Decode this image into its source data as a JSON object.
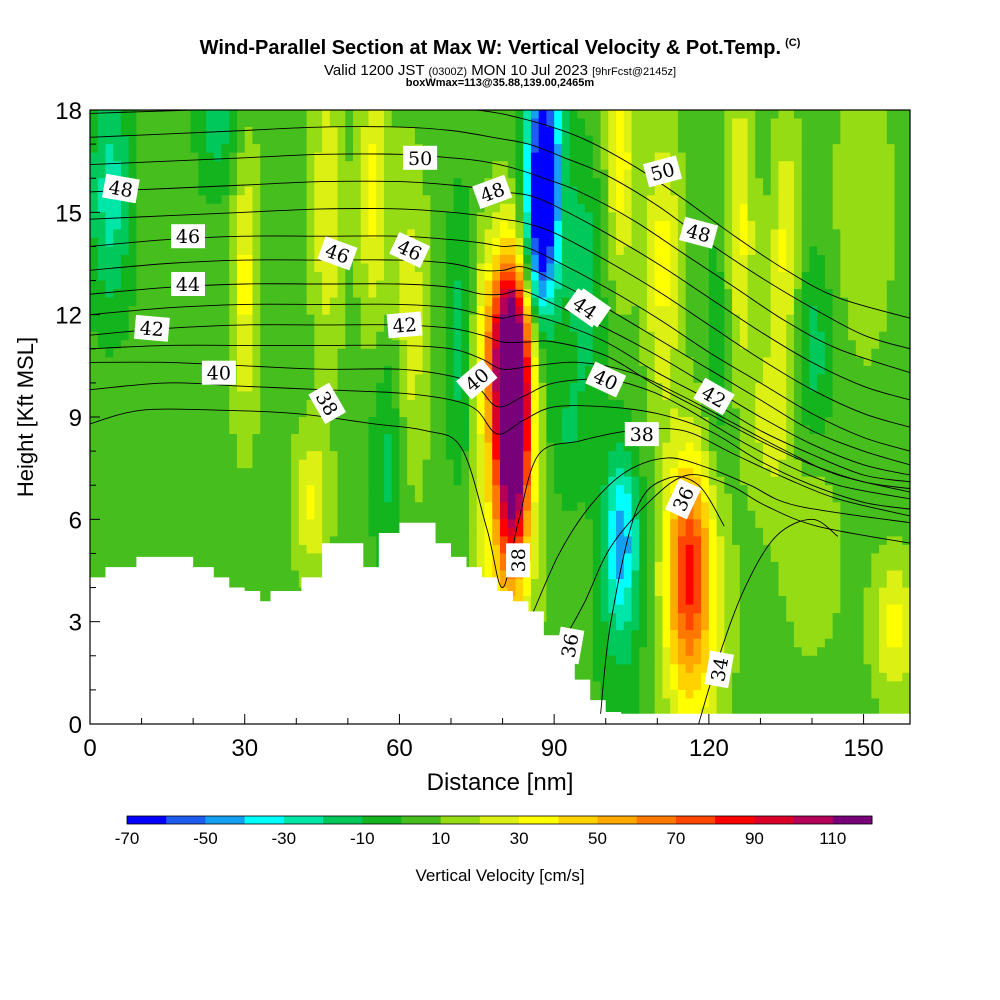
{
  "chart_data": {
    "type": "heatmap",
    "title": "Wind-Parallel Section at Max W: Vertical Velocity & Pot.Temp.",
    "copyright": "(C)",
    "valid": {
      "prefix": "Valid 1200 JST",
      "utc": "(0300Z)",
      "date": "MON 10 Jul 2023",
      "forecast": "[9hrFcst@2145z]"
    },
    "boxinfo": "boxWmax=113@35.88,139.00,2465m",
    "xlabel": "Distance [nm]",
    "ylabel": "Height [Kft MSL]",
    "xlim": [
      0,
      159
    ],
    "ylim": [
      0,
      18
    ],
    "x_ticks": [
      0,
      30,
      60,
      90,
      120,
      150
    ],
    "y_ticks": [
      0,
      3,
      6,
      9,
      12,
      15,
      18
    ],
    "colorbar": {
      "label": "Vertical Velocity [cm/s]",
      "tick_labels": [
        -70,
        -50,
        -30,
        -10,
        10,
        30,
        50,
        70,
        90,
        110
      ],
      "bounds": [
        -70,
        -60,
        -50,
        -40,
        -30,
        -20,
        -10,
        0,
        10,
        20,
        30,
        40,
        50,
        60,
        70,
        80,
        90,
        100,
        110,
        120
      ],
      "colors": [
        "#0000ff",
        "#1e5cf0",
        "#14a0f0",
        "#00ffff",
        "#00e6a8",
        "#00c85a",
        "#14b41e",
        "#46be1e",
        "#96dc14",
        "#dcf014",
        "#ffff00",
        "#ffd200",
        "#ffa800",
        "#ff7800",
        "#ff4600",
        "#ff0000",
        "#dc0028",
        "#b4005a",
        "#780078"
      ]
    },
    "background_value": 5,
    "velocity_features": [
      {
        "x": 82,
        "y": 8.8,
        "sx": 2.2,
        "sy": 2.8,
        "v": 120
      },
      {
        "x": 81,
        "y": 11.2,
        "sx": 3.8,
        "sy": 1.8,
        "v": 52
      },
      {
        "x": 80,
        "y": 7.2,
        "sx": 4.5,
        "sy": 4.5,
        "v": 32
      },
      {
        "x": 88,
        "y": 16.3,
        "sx": 2.6,
        "sy": 2.6,
        "v": -78
      },
      {
        "x": 87,
        "y": 13.5,
        "sx": 2.2,
        "sy": 1.8,
        "v": -36
      },
      {
        "x": 116,
        "y": 4.6,
        "sx": 3.0,
        "sy": 2.2,
        "v": 55
      },
      {
        "x": 117,
        "y": 3.0,
        "sx": 4.5,
        "sy": 3.5,
        "v": 28
      },
      {
        "x": 103,
        "y": 5.5,
        "sx": 2.2,
        "sy": 1.6,
        "v": -36
      },
      {
        "x": 103,
        "y": 4.0,
        "sx": 3.5,
        "sy": 3.0,
        "v": -18
      },
      {
        "x": 4,
        "y": 15.5,
        "sx": 3.0,
        "sy": 2.5,
        "v": -30
      },
      {
        "x": 25,
        "y": 17.5,
        "sx": 3.0,
        "sy": 1.5,
        "v": -20
      },
      {
        "x": 30,
        "y": 13.0,
        "sx": 2.0,
        "sy": 3.0,
        "v": 28
      },
      {
        "x": 46,
        "y": 15.0,
        "sx": 2.2,
        "sy": 3.0,
        "v": 25
      },
      {
        "x": 55,
        "y": 15.5,
        "sx": 2.0,
        "sy": 3.0,
        "v": 28
      },
      {
        "x": 62,
        "y": 11.5,
        "sx": 2.5,
        "sy": 3.5,
        "v": 22
      },
      {
        "x": 58,
        "y": 8.0,
        "sx": 2.5,
        "sy": 2.5,
        "v": -20
      },
      {
        "x": 72,
        "y": 11.0,
        "sx": 2.0,
        "sy": 3.0,
        "v": -25
      },
      {
        "x": 103,
        "y": 16.5,
        "sx": 2.0,
        "sy": 2.5,
        "v": 30
      },
      {
        "x": 111,
        "y": 13.5,
        "sx": 2.5,
        "sy": 3.0,
        "v": 28
      },
      {
        "x": 126,
        "y": 14.5,
        "sx": 2.0,
        "sy": 3.0,
        "v": 28
      },
      {
        "x": 135,
        "y": 14.0,
        "sx": 2.0,
        "sy": 2.5,
        "v": 28
      },
      {
        "x": 96,
        "y": 13.0,
        "sx": 2.5,
        "sy": 2.5,
        "v": -22
      },
      {
        "x": 140,
        "y": 11.0,
        "sx": 3.0,
        "sy": 2.0,
        "v": -20
      },
      {
        "x": 122,
        "y": 11.0,
        "sx": 2.0,
        "sy": 2.5,
        "v": -15
      },
      {
        "x": 150,
        "y": 15.0,
        "sx": 4.0,
        "sy": 3.0,
        "v": 15
      },
      {
        "x": 156,
        "y": 2.8,
        "sx": 3.0,
        "sy": 1.5,
        "v": 28
      },
      {
        "x": 43,
        "y": 6.5,
        "sx": 2.5,
        "sy": 1.5,
        "v": 26
      },
      {
        "x": 140,
        "y": 5.0,
        "sx": 4.0,
        "sy": 2.0,
        "v": 15
      },
      {
        "x": 92,
        "y": 8.5,
        "sx": 3.0,
        "sy": 1.5,
        "v": -15
      },
      {
        "x": 132,
        "y": 9.0,
        "sx": 3.0,
        "sy": 2.0,
        "v": 20
      }
    ],
    "terrain": {
      "x": [
        0,
        3,
        9,
        15,
        20,
        24,
        27,
        30,
        33,
        35,
        38,
        41,
        45,
        50,
        53,
        56,
        60,
        63,
        67,
        70,
        73,
        76,
        79,
        82,
        85,
        88,
        91,
        94,
        97,
        100,
        103,
        106,
        159
      ],
      "height": [
        4.3,
        4.6,
        4.9,
        4.9,
        4.6,
        4.3,
        4.0,
        3.9,
        3.6,
        3.9,
        3.9,
        4.3,
        5.3,
        5.3,
        4.6,
        5.6,
        5.9,
        5.9,
        5.3,
        4.9,
        4.6,
        4.3,
        3.9,
        3.6,
        3.3,
        2.6,
        2.0,
        1.3,
        0.7,
        0.35,
        0.3,
        0.3,
        0.3
      ]
    },
    "contours": [
      {
        "level": 34,
        "x": [
          118,
          122,
          127,
          133,
          140,
          145
        ],
        "y": [
          0,
          2.0,
          4.0,
          5.5,
          6.0,
          5.5
        ],
        "label": "34",
        "label_pos": [
          122,
          1.6
        ],
        "label_rot": -80
      },
      {
        "level": 35,
        "x": [
          99,
          101,
          106,
          112,
          118,
          123
        ],
        "y": [
          0.3,
          3.0,
          6.3,
          7.2,
          7.0,
          5.8
        ]
      },
      {
        "level": 36,
        "x": [
          92,
          96,
          101,
          109,
          116,
          124,
          131,
          141,
          159
        ],
        "y": [
          2.5,
          3.6,
          5.2,
          6.6,
          7.3,
          7.0,
          6.4,
          5.8,
          5.3
        ],
        "label": "36",
        "label_pos": [
          115,
          6.6
        ],
        "label_rot": -65
      },
      {
        "level": 37,
        "x": [
          86,
          91,
          97,
          104,
          112,
          120,
          128,
          137,
          159
        ],
        "y": [
          3.3,
          5.0,
          6.4,
          7.4,
          7.8,
          7.5,
          7.0,
          6.4,
          5.9
        ]
      },
      {
        "level": 38,
        "x": [
          0,
          10,
          25,
          40,
          55,
          65,
          72,
          77,
          80,
          83,
          87,
          95,
          105,
          115,
          125,
          135,
          145,
          159
        ],
        "y": [
          8.8,
          9.2,
          9.2,
          9.1,
          8.8,
          8.6,
          8.1,
          5.7,
          4.0,
          5.9,
          7.9,
          8.3,
          8.6,
          8.6,
          7.9,
          7.2,
          6.6,
          6.1
        ],
        "label": "38",
        "label_pos": [
          107,
          8.5
        ],
        "label_rot": 0
      },
      {
        "level": 39,
        "x": [
          0,
          15,
          30,
          45,
          60,
          70,
          75,
          79,
          84,
          90,
          100,
          110,
          120,
          130,
          140,
          150,
          159
        ],
        "y": [
          9.8,
          10.0,
          9.9,
          9.8,
          9.7,
          9.5,
          9.2,
          8.5,
          8.9,
          9.3,
          9.3,
          9.1,
          8.6,
          7.7,
          7.0,
          6.5,
          6.3
        ]
      },
      {
        "level": 40,
        "x": [
          0,
          15,
          30,
          45,
          60,
          70,
          75,
          79,
          84,
          90,
          100,
          108,
          115,
          125,
          135,
          145,
          159
        ],
        "y": [
          10.6,
          10.6,
          10.5,
          10.4,
          10.4,
          10.2,
          9.9,
          9.3,
          9.6,
          10.0,
          10.1,
          9.8,
          9.3,
          8.4,
          7.6,
          7.0,
          6.6
        ],
        "label": "40",
        "label_pos": [
          100,
          10.1
        ],
        "label_rot": 25
      },
      {
        "level": 41,
        "x": [
          0,
          15,
          30,
          45,
          60,
          70,
          76,
          80,
          86,
          95,
          105,
          115,
          125,
          135,
          145,
          159
        ],
        "y": [
          11.0,
          11.1,
          11.1,
          11.1,
          11.1,
          11.0,
          10.7,
          10.4,
          10.5,
          10.6,
          10.3,
          9.6,
          8.8,
          8.0,
          7.3,
          6.8
        ]
      },
      {
        "level": 42,
        "x": [
          0,
          15,
          30,
          45,
          60,
          70,
          76,
          80,
          85,
          90,
          100,
          110,
          120,
          130,
          140,
          150,
          159
        ],
        "y": [
          11.4,
          11.6,
          11.7,
          11.7,
          11.7,
          11.6,
          11.4,
          11.2,
          11.2,
          11.2,
          10.8,
          9.9,
          9.1,
          8.3,
          7.6,
          7.1,
          6.9
        ],
        "label": "42",
        "label_pos": [
          121,
          9.6
        ],
        "label_rot": 30
      },
      {
        "level": 43,
        "x": [
          0,
          15,
          30,
          45,
          60,
          70,
          76,
          80,
          84,
          90,
          100,
          110,
          120,
          130,
          140,
          150,
          159
        ],
        "y": [
          12.0,
          12.2,
          12.3,
          12.3,
          12.3,
          12.2,
          12.0,
          11.9,
          12.0,
          11.8,
          11.2,
          10.3,
          9.5,
          8.6,
          7.9,
          7.3,
          7.1
        ]
      },
      {
        "level": 44,
        "x": [
          0,
          15,
          30,
          45,
          60,
          70,
          76,
          80,
          84,
          90,
          100,
          110,
          120,
          130,
          140,
          150,
          159
        ],
        "y": [
          12.6,
          12.8,
          12.9,
          12.9,
          12.9,
          12.8,
          12.6,
          12.6,
          12.7,
          12.3,
          11.6,
          10.8,
          9.9,
          9.0,
          8.2,
          7.6,
          7.3
        ],
        "label": "44",
        "label_pos": [
          97,
          12.2
        ],
        "label_rot": 35
      },
      {
        "level": 45,
        "x": [
          0,
          15,
          30,
          45,
          60,
          70,
          76,
          80,
          84,
          90,
          100,
          110,
          120,
          130,
          140,
          150,
          159
        ],
        "y": [
          13.3,
          13.5,
          13.6,
          13.6,
          13.6,
          13.5,
          13.3,
          13.3,
          13.4,
          13.0,
          12.2,
          11.3,
          10.4,
          9.5,
          8.6,
          8.0,
          7.6
        ]
      },
      {
        "level": 46,
        "x": [
          0,
          15,
          30,
          45,
          60,
          70,
          76,
          80,
          84,
          90,
          100,
          110,
          120,
          130,
          140,
          150,
          159
        ],
        "y": [
          14.0,
          14.2,
          14.3,
          14.3,
          14.3,
          14.2,
          14.1,
          14.0,
          14.0,
          13.6,
          12.8,
          11.9,
          10.9,
          10.0,
          9.1,
          8.4,
          8.0
        ],
        "label": "46",
        "label_pos": [
          48,
          13.8
        ],
        "label_rot": 20
      },
      {
        "level": 47,
        "x": [
          0,
          15,
          30,
          45,
          60,
          70,
          76,
          80,
          84,
          90,
          100,
          110,
          120,
          130,
          140,
          150,
          159
        ],
        "y": [
          14.8,
          14.9,
          15.0,
          15.1,
          15.1,
          15.0,
          14.9,
          14.8,
          14.7,
          14.4,
          13.6,
          12.7,
          11.7,
          10.7,
          9.8,
          9.1,
          8.7
        ]
      },
      {
        "level": 48,
        "x": [
          0,
          15,
          30,
          45,
          60,
          70,
          76,
          80,
          85,
          90,
          100,
          110,
          120,
          130,
          140,
          150,
          159
        ],
        "y": [
          15.6,
          15.7,
          15.8,
          15.9,
          15.9,
          15.8,
          15.7,
          15.6,
          15.5,
          15.2,
          14.4,
          13.5,
          12.5,
          11.5,
          10.6,
          9.9,
          9.5
        ],
        "label": "48",
        "label_pos": [
          78,
          15.6
        ],
        "label_rot": -20
      },
      {
        "level": 49,
        "x": [
          0,
          15,
          30,
          45,
          60,
          70,
          76,
          82,
          88,
          95,
          105,
          115,
          125,
          135,
          145,
          159
        ],
        "y": [
          16.4,
          16.5,
          16.6,
          16.7,
          16.7,
          16.6,
          16.5,
          16.3,
          16.0,
          15.6,
          14.8,
          13.8,
          12.8,
          11.8,
          11.0,
          10.3
        ]
      },
      {
        "level": 50,
        "x": [
          0,
          15,
          30,
          45,
          60,
          70,
          78,
          85,
          92,
          100,
          110,
          120,
          130,
          140,
          150,
          159
        ],
        "y": [
          17.2,
          17.3,
          17.4,
          17.5,
          17.5,
          17.4,
          17.2,
          17.0,
          16.6,
          16.1,
          15.2,
          14.1,
          13.1,
          12.2,
          11.4,
          11.0
        ],
        "label": "50",
        "label_pos": [
          64,
          16.6
        ],
        "label_rot": 0
      },
      {
        "level": 51,
        "x": [
          0,
          20,
          40,
          60,
          75,
          85,
          95,
          105,
          115,
          125,
          135,
          145,
          159
        ],
        "y": [
          17.9,
          18.0,
          18.1,
          18.1,
          18.0,
          17.7,
          17.2,
          16.4,
          15.4,
          14.3,
          13.3,
          12.5,
          11.9
        ]
      }
    ],
    "extra_labels": [
      {
        "text": "48",
        "x": 6,
        "y": 15.7,
        "rot": 10
      },
      {
        "text": "46",
        "x": 19,
        "y": 14.3,
        "rot": 0
      },
      {
        "text": "44",
        "x": 19,
        "y": 12.9,
        "rot": 0
      },
      {
        "text": "42",
        "x": 12,
        "y": 11.6,
        "rot": 5
      },
      {
        "text": "40",
        "x": 25,
        "y": 10.3,
        "rot": 0
      },
      {
        "text": "38",
        "x": 46,
        "y": 9.4,
        "rot": 60
      },
      {
        "text": "46",
        "x": 62,
        "y": 13.9,
        "rot": 25
      },
      {
        "text": "42",
        "x": 61,
        "y": 11.7,
        "rot": -5
      },
      {
        "text": "40",
        "x": 75,
        "y": 10.1,
        "rot": -40
      },
      {
        "text": "38",
        "x": 83,
        "y": 4.8,
        "rot": -90
      },
      {
        "text": "36",
        "x": 93,
        "y": 2.3,
        "rot": -80
      },
      {
        "text": "50",
        "x": 111,
        "y": 16.2,
        "rot": -15
      },
      {
        "text": "48",
        "x": 118,
        "y": 14.4,
        "rot": 15
      },
      {
        "text": "44",
        "x": 96,
        "y": 12.2,
        "rot": 35
      }
    ]
  }
}
